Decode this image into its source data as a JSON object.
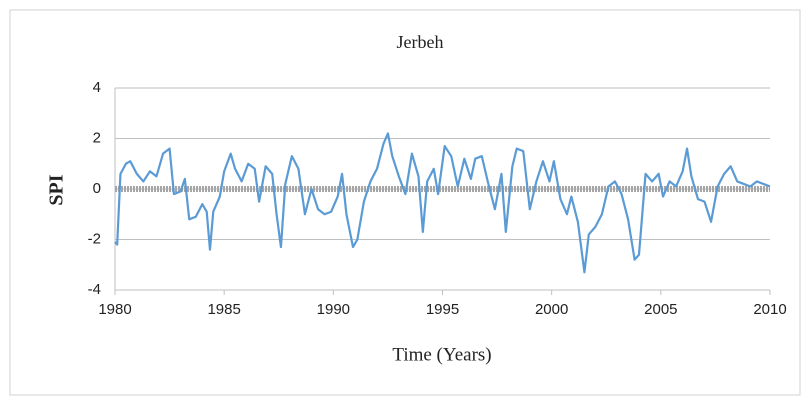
{
  "chart_data": {
    "type": "line",
    "title": "Jerbeh",
    "x_label": "Time (Years)",
    "y_label": "SPI",
    "series": [
      {
        "name": "SPI",
        "color": "#5b9bd5",
        "x": [
          1980.0,
          1980.1,
          1980.25,
          1980.5,
          1980.7,
          1981.0,
          1981.3,
          1981.6,
          1981.9,
          1982.2,
          1982.5,
          1982.7,
          1983.0,
          1983.2,
          1983.4,
          1983.7,
          1984.0,
          1984.2,
          1984.35,
          1984.5,
          1984.8,
          1985.0,
          1985.3,
          1985.5,
          1985.8,
          1986.1,
          1986.4,
          1986.6,
          1986.9,
          1987.2,
          1987.4,
          1987.6,
          1987.8,
          1988.1,
          1988.4,
          1988.7,
          1989.0,
          1989.3,
          1989.6,
          1989.9,
          1990.2,
          1990.4,
          1990.6,
          1990.9,
          1991.1,
          1991.4,
          1991.7,
          1992.0,
          1992.3,
          1992.5,
          1992.7,
          1993.0,
          1993.3,
          1993.6,
          1993.9,
          1994.1,
          1994.3,
          1994.6,
          1994.8,
          1995.1,
          1995.4,
          1995.7,
          1996.0,
          1996.3,
          1996.5,
          1996.8,
          1997.1,
          1997.4,
          1997.7,
          1997.9,
          1998.2,
          1998.4,
          1998.7,
          1999.0,
          1999.3,
          1999.6,
          1999.9,
          2000.1,
          2000.4,
          2000.7,
          2000.9,
          2001.2,
          2001.5,
          2001.7,
          2002.0,
          2002.3,
          2002.6,
          2002.9,
          2003.2,
          2003.5,
          2003.8,
          2004.0,
          2004.3,
          2004.6,
          2004.9,
          2005.1,
          2005.4,
          2005.7,
          2006.0,
          2006.2,
          2006.4,
          2006.7,
          2007.0,
          2007.3,
          2007.6,
          2007.9,
          2008.2,
          2008.5,
          2008.8,
          2009.1,
          2009.4,
          2009.7,
          2010.0
        ],
        "values": [
          -2.1,
          -2.2,
          0.6,
          1.0,
          1.1,
          0.6,
          0.3,
          0.7,
          0.5,
          1.4,
          1.6,
          -0.2,
          -0.1,
          0.4,
          -1.2,
          -1.1,
          -0.6,
          -0.9,
          -2.4,
          -0.9,
          -0.3,
          0.7,
          1.4,
          0.8,
          0.3,
          1.0,
          0.8,
          -0.5,
          0.9,
          0.6,
          -1.0,
          -2.3,
          0.2,
          1.3,
          0.8,
          -1.0,
          0.0,
          -0.8,
          -1.0,
          -0.9,
          -0.3,
          0.6,
          -1.0,
          -2.3,
          -2.0,
          -0.5,
          0.3,
          0.8,
          1.8,
          2.2,
          1.3,
          0.5,
          -0.2,
          1.4,
          0.5,
          -1.7,
          0.3,
          0.8,
          -0.2,
          1.7,
          1.3,
          0.1,
          1.2,
          0.4,
          1.2,
          1.3,
          0.2,
          -0.8,
          0.6,
          -1.7,
          0.9,
          1.6,
          1.5,
          -0.8,
          0.3,
          1.1,
          0.3,
          1.1,
          -0.4,
          -1.0,
          -0.3,
          -1.3,
          -3.3,
          -1.8,
          -1.5,
          -1.0,
          0.1,
          0.3,
          -0.2,
          -1.2,
          -2.8,
          -2.6,
          0.6,
          0.3,
          0.6,
          -0.3,
          0.3,
          0.1,
          0.7,
          1.6,
          0.5,
          -0.4,
          -0.5,
          -1.3,
          0.1,
          0.6,
          0.9,
          0.3,
          0.2,
          0.1,
          0.3,
          0.2,
          0.1
        ]
      }
    ],
    "xlim": [
      1980,
      2010
    ],
    "xticks": [
      1980,
      1985,
      1990,
      1995,
      2000,
      2005,
      2010
    ],
    "ylim": [
      -4,
      4
    ],
    "yticks": [
      -4,
      -2,
      0,
      2,
      4
    ],
    "grid": true
  }
}
